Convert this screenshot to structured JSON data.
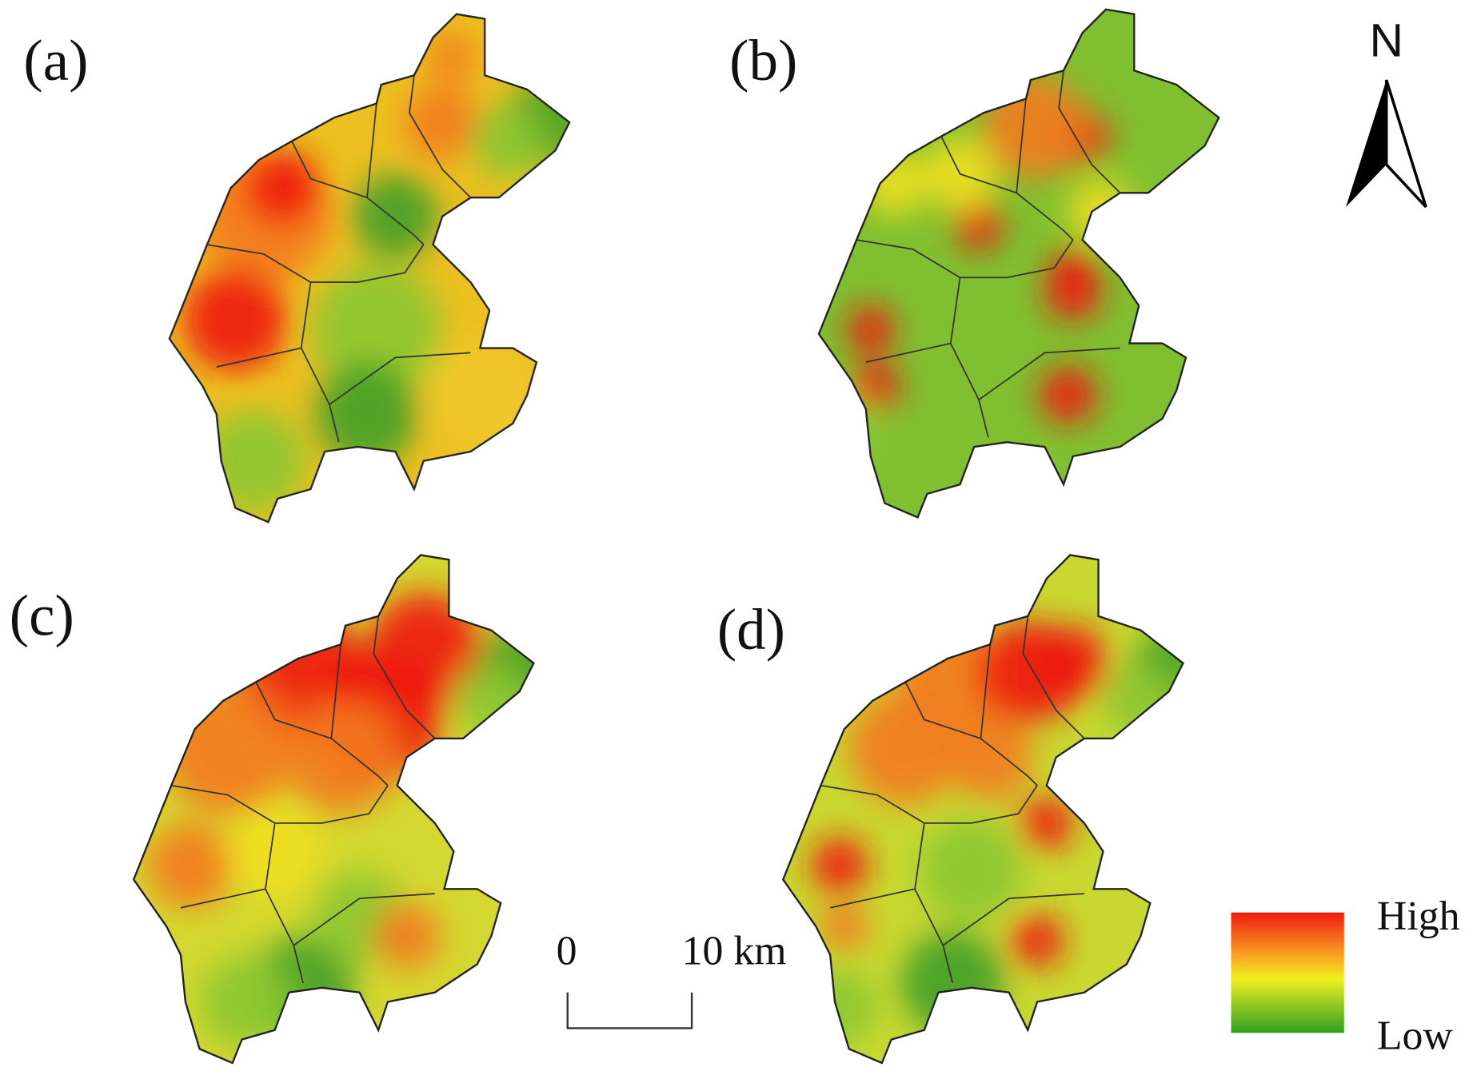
{
  "panels": [
    {
      "label": "(a)"
    },
    {
      "label": "(b)"
    },
    {
      "label": "(c)"
    },
    {
      "label": "(d)"
    }
  ],
  "north": "N",
  "scale_bar": {
    "start": "0",
    "end": "10 km"
  },
  "legend": {
    "high": "High",
    "low": "Low"
  }
}
